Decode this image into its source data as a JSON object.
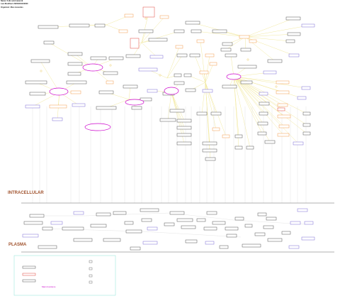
{
  "header": {
    "line1": "Name: Folic acid network",
    "line2": "Last Modified: 20200204100000",
    "line3": "Organism: Mus musculus"
  },
  "compartments": {
    "intracellular": "INTRACELLULAR",
    "plasma": "PLASMA"
  },
  "legend": {
    "title": "Main functions"
  },
  "colors": {
    "edge_yellow": "#f2e9a0",
    "edge_grey": "#d9d9d9",
    "node_grey": "#555555",
    "node_blue": "#7b6bd6",
    "node_orange": "#f2994a",
    "node_red": "#e0443a",
    "ellipse_magenta": "#cc00cc",
    "legend_border": "#9fe6de",
    "compartment_text": "#a0522d"
  }
}
